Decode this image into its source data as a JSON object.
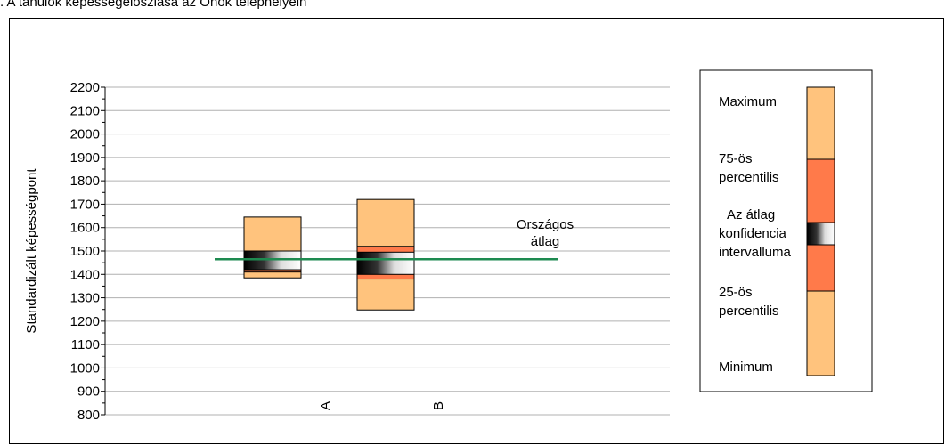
{
  "page": {
    "title": ". A tanulók képességeloszlása az Önök telephelyein"
  },
  "chart_data": {
    "type": "box",
    "title": "",
    "ylabel": "Standardizált képességpont",
    "xlabel": "",
    "ylim": [
      800,
      2200
    ],
    "ytick_step": 100,
    "grid": true,
    "categories": [
      "A",
      "B"
    ],
    "boxes": [
      {
        "category": "A",
        "min": 1385,
        "p25": 1410,
        "ci_low": 1420,
        "ci_high": 1500,
        "p75": 1500,
        "max": 1645
      },
      {
        "category": "B",
        "min": 1248,
        "p25": 1380,
        "ci_low": 1400,
        "ci_high": 1495,
        "p75": 1520,
        "max": 1720
      }
    ],
    "reference_line": {
      "label": "Országos átlag",
      "value": 1465
    },
    "legend": {
      "position": "right",
      "items": [
        "Maximum",
        "75-ös percentilis",
        "Az átlag konfidencia intervalluma",
        "25-ös percentilis",
        "Minimum"
      ]
    },
    "colors": {
      "outer": "#FFC37D",
      "inner": "#FF7A4A",
      "ci_dark": "#000000",
      "ci_light": "#ffffff",
      "reference_line": "#1E8A50",
      "grid": "#b0b0b0"
    }
  }
}
